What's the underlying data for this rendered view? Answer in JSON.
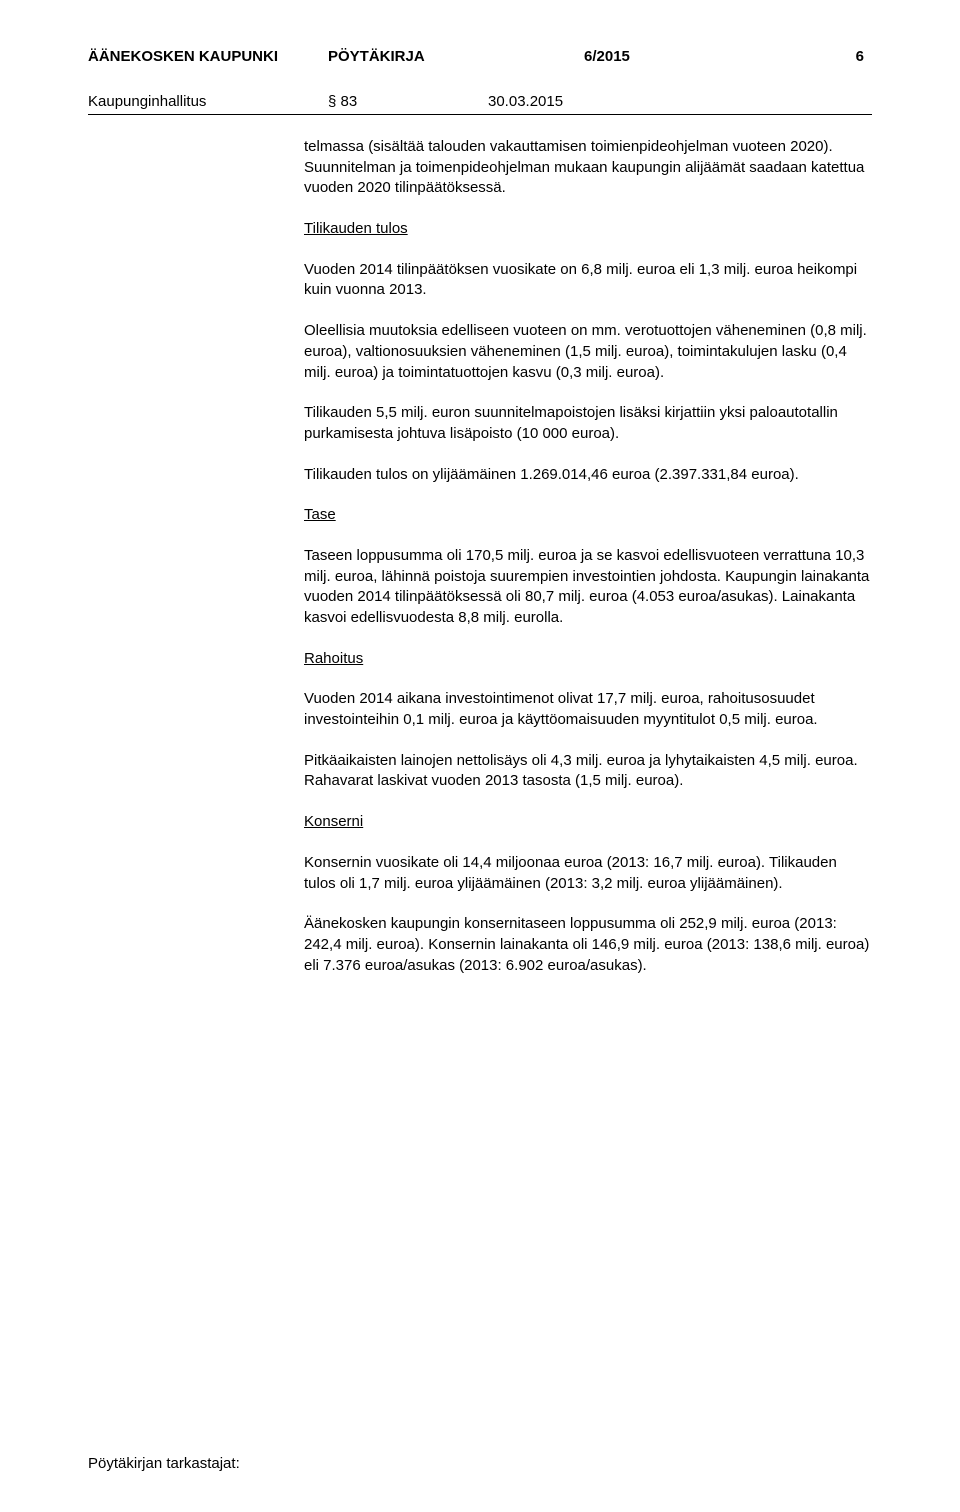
{
  "header": {
    "org": "ÄÄNEKOSKEN KAUPUNKI",
    "doc": "PÖYTÄKIRJA",
    "num": "6/2015",
    "page": "6"
  },
  "subhead": {
    "board": "Kaupunginhallitus",
    "section": "§ 83",
    "date": "30.03.2015"
  },
  "body": {
    "p1": "telmassa (sisältää talouden vakauttamisen toimienpideohjelman vuoteen 2020). Suunnitelman ja toimenpideohjelman mukaan kau­pungin alijäämät saadaan katettua vuoden 2020 tilinpäätöksessä.",
    "h1": "Tilikauden tulos",
    "p2": "Vuoden 2014 tilinpäätöksen vuosikate on 6,8 milj. euroa eli 1,3 milj. euroa heikompi kuin vuonna 2013.",
    "p3": "Oleellisia muutoksia edelliseen vuoteen on mm. verotuottojen vähe­neminen (0,8 milj. euroa), valtionosuuksien väheneminen (1,5 milj. euroa), toimintakulujen lasku (0,4 milj. euroa) ja toimintatuottojen kasvu (0,3 milj. euroa).",
    "p4": "Tilikauden 5,5 milj. euron suunnitelmapoistojen lisäksi kirjattiin yksi paloautotallin purkamisesta johtuva lisäpoisto (10 000 euroa).",
    "p5": "Tilikauden tulos on ylijäämäinen 1.269.014,46 euroa (2.397.331,84 euroa).",
    "h2": "Tase",
    "p6": "Taseen loppusumma oli 170,5 milj. euroa ja se kasvoi edellisvuo­teen verrattuna 10,3 milj. euroa, lähinnä poistoja suurempien inves­tointien johdosta. Kaupungin lainakanta vuoden 2014 tilinpäätökses­sä oli 80,7 milj. euroa (4.053 euroa/asukas). Lainakanta kasvoi edel­lisvuodesta 8,8 milj. eurolla.",
    "h3": "Rahoitus",
    "p7": "Vuoden 2014 aikana investointimenot olivat 17,7 milj. euroa, rahoi­tusosuudet investointeihin 0,1 milj. euroa ja käyttöomaisuuden myyntitulot 0,5 milj. euroa.",
    "p8": "Pitkäaikaisten lainojen nettolisäys oli 4,3 milj. euroa ja lyhytaikaisten 4,5 milj. euroa. Rahavarat laskivat vuoden 2013 tasosta (1,5 milj. euroa).",
    "h4": "Konserni",
    "p9": "Konsernin vuosikate oli 14,4 miljoonaa euroa (2013: 16,7 milj. eu­roa). Tilikauden tulos oli 1,7 milj. euroa ylijäämäinen (2013: 3,2 milj. euroa ylijäämäinen).",
    "p10": "Äänekosken kaupungin konsernitaseen loppusumma oli 252,9 milj. euroa (2013: 242,4 milj. euroa). Konsernin lainakanta oli 146,9 milj. euroa (2013: 138,6 milj. euroa) eli 7.376 euroa/asukas (2013: 6.902 euroa/asukas)."
  },
  "footer": "Pöytäkirjan tarkastajat:",
  "colors": {
    "text": "#000000",
    "bg": "#ffffff"
  }
}
